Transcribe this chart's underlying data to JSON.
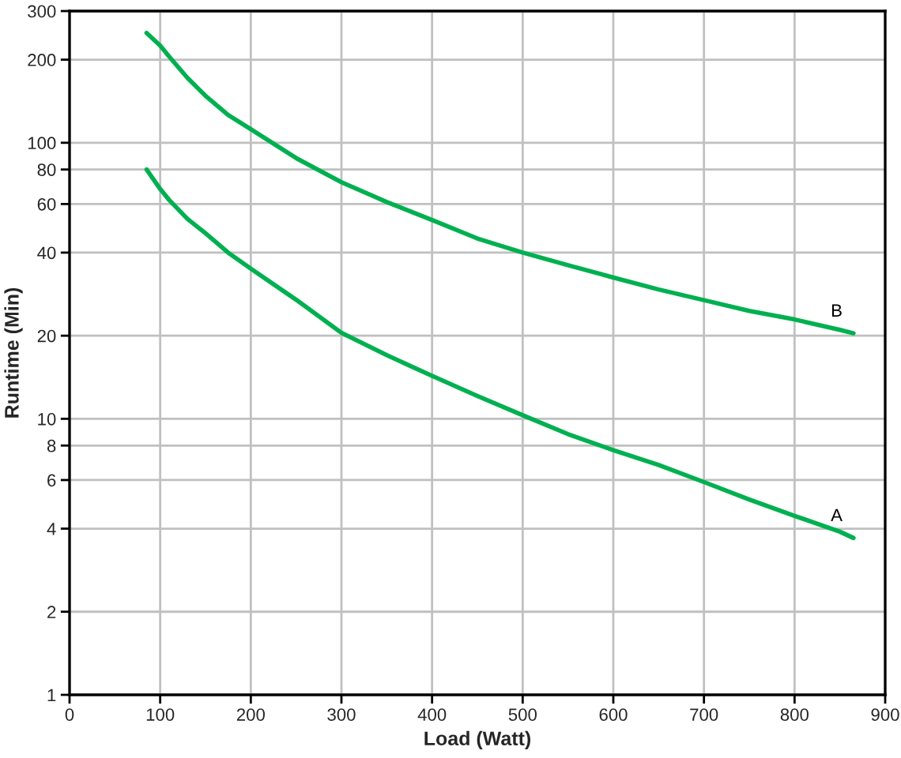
{
  "chart_data": {
    "type": "line",
    "xlabel": "Load (Watt)",
    "ylabel": "Runtime (Min)",
    "log": "y",
    "xlim": [
      0,
      900
    ],
    "xticks": [
      0,
      100,
      200,
      300,
      400,
      500,
      600,
      700,
      800,
      900
    ],
    "ylim": [
      1,
      300
    ],
    "yticks": [
      1,
      2,
      4,
      6,
      8,
      10,
      20,
      40,
      60,
      80,
      100,
      200,
      300
    ],
    "grid": true,
    "line_style": "solid",
    "series": [
      {
        "name": "B",
        "color": "#00b050",
        "x": [
          85,
          100,
          110,
          130,
          150,
          175,
          200,
          250,
          300,
          350,
          400,
          450,
          500,
          550,
          600,
          650,
          700,
          750,
          800,
          850,
          865
        ],
        "values": [
          250,
          225,
          205,
          172,
          148,
          126,
          112,
          88,
          72,
          61,
          52.5,
          45,
          40,
          36,
          32.5,
          29.4,
          26.9,
          24.6,
          22.9,
          21,
          20.4
        ]
      },
      {
        "name": "A",
        "color": "#00b050",
        "x": [
          85,
          100,
          110,
          130,
          150,
          175,
          200,
          250,
          300,
          350,
          400,
          450,
          500,
          550,
          600,
          650,
          700,
          750,
          800,
          850,
          865
        ],
        "values": [
          80,
          68,
          62,
          53,
          47,
          40,
          35,
          27,
          20.5,
          17,
          14.3,
          12.1,
          10.3,
          8.8,
          7.7,
          6.8,
          5.9,
          5.1,
          4.45,
          3.9,
          3.7
        ]
      }
    ]
  }
}
